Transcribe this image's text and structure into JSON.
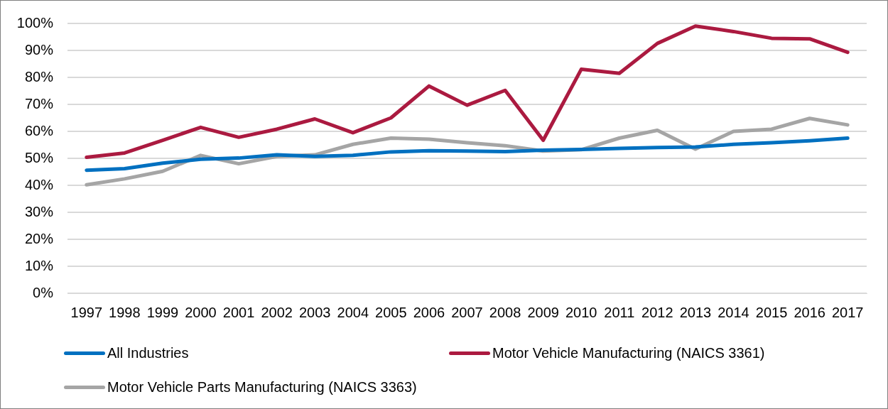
{
  "chart_data": {
    "type": "line",
    "categories": [
      "1997",
      "1998",
      "1999",
      "2000",
      "2001",
      "2002",
      "2003",
      "2004",
      "2005",
      "2006",
      "2007",
      "2008",
      "2009",
      "2010",
      "2011",
      "2012",
      "2013",
      "2014",
      "2015",
      "2016",
      "2017"
    ],
    "series": [
      {
        "name": "All Industries",
        "color": "#0070c0",
        "values": [
          45.6,
          46.2,
          48.2,
          49.7,
          50.1,
          51.3,
          50.7,
          51.1,
          52.4,
          52.8,
          52.7,
          52.5,
          53.0,
          53.3,
          53.7,
          54.0,
          54.2,
          55.2,
          55.8,
          56.5,
          57.5
        ]
      },
      {
        "name": "Motor Vehicle Manufacturing (NAICS 3361)",
        "color": "#ab1a40",
        "values": [
          50.4,
          52.0,
          56.7,
          61.5,
          57.8,
          60.8,
          64.6,
          59.5,
          65.0,
          76.8,
          69.7,
          75.2,
          56.7,
          83.0,
          81.5,
          92.6,
          99.0,
          97.0,
          94.5,
          94.3,
          89.3
        ]
      },
      {
        "name": "Motor Vehicle Parts Manufacturing (NAICS 3363)",
        "color": "#a5a5a5",
        "values": [
          40.2,
          42.4,
          45.2,
          51.1,
          48.0,
          50.7,
          51.3,
          55.2,
          57.5,
          57.1,
          55.8,
          54.7,
          52.7,
          53.2,
          57.5,
          60.4,
          53.4,
          60.0,
          60.8,
          64.8,
          62.4
        ]
      }
    ],
    "ylim": [
      0,
      100
    ],
    "yticks": [
      {
        "value": 0,
        "label": "0%"
      },
      {
        "value": 10,
        "label": "10%"
      },
      {
        "value": 20,
        "label": "20%"
      },
      {
        "value": 30,
        "label": "30%"
      },
      {
        "value": 40,
        "label": "40%"
      },
      {
        "value": 50,
        "label": "50%"
      },
      {
        "value": 60,
        "label": "60%"
      },
      {
        "value": 70,
        "label": "70%"
      },
      {
        "value": 80,
        "label": "80%"
      },
      {
        "value": 90,
        "label": "90%"
      },
      {
        "value": 100,
        "label": "100%"
      }
    ],
    "grid": "y",
    "legend": "bottom",
    "marker": "none",
    "line_style": "solid"
  }
}
